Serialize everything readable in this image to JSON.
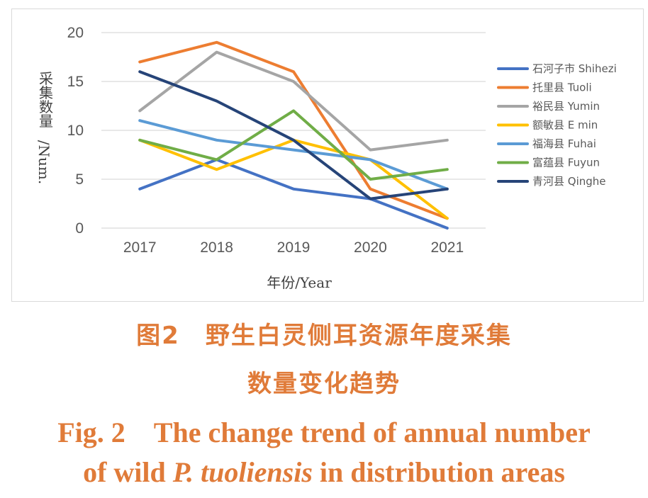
{
  "chart_data": {
    "type": "line",
    "categories": [
      "2017",
      "2018",
      "2019",
      "2020",
      "2021"
    ],
    "series": [
      {
        "name": "石河子市 Shihezi",
        "color": "#4472c4",
        "values": [
          4,
          7,
          4,
          3,
          0
        ]
      },
      {
        "name": "托里县 Tuoli",
        "color": "#ed7d31",
        "values": [
          17,
          19,
          16,
          4,
          1
        ]
      },
      {
        "name": "裕民县 Yumin",
        "color": "#a5a5a5",
        "values": [
          12,
          18,
          15,
          8,
          9
        ]
      },
      {
        "name": "额敏县 E min",
        "color": "#ffc000",
        "values": [
          9,
          6,
          9,
          7,
          1
        ]
      },
      {
        "name": "福海县 Fuhai",
        "color": "#5b9bd5",
        "values": [
          11,
          9,
          8,
          7,
          4
        ]
      },
      {
        "name": "富蕴县 Fuyun",
        "color": "#70ad47",
        "values": [
          9,
          7,
          12,
          5,
          6
        ]
      },
      {
        "name": "青河县 Qinghe",
        "color": "#264478",
        "values": [
          16,
          13,
          9,
          3,
          4
        ]
      }
    ],
    "xlabel": "年份/Year",
    "ylabel": "采集数量/Num.",
    "ylim": [
      0,
      20
    ],
    "yticks": [
      "0",
      "5",
      "10",
      "15",
      "20"
    ],
    "grid": "horizontal",
    "legend_position": "right"
  },
  "caption": {
    "cn_line1": "图2　野生白灵侧耳资源年度采集",
    "cn_line2": "数量变化趋势",
    "en_line1": "Fig. 2　The change trend of annual number",
    "en_line2_pre": "of wild ",
    "en_line2_species": "P.  tuoliensis",
    "en_line2_post": " in distribution areas"
  }
}
